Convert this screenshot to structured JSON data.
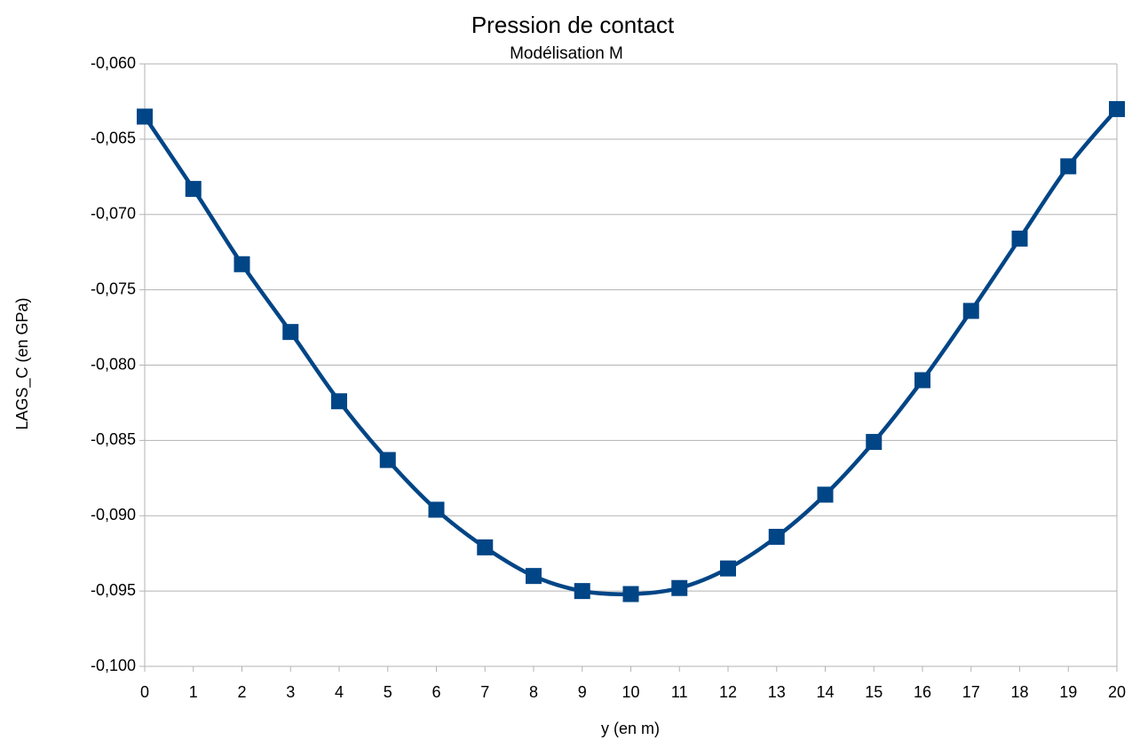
{
  "chart_data": {
    "type": "line",
    "title": "Pression de contact",
    "subtitle": "Modélisation  M",
    "x_label": "y  (en m)",
    "y_label": "LAGS_C  (en GPa)",
    "x": [
      0,
      1,
      2,
      3,
      4,
      5,
      6,
      7,
      8,
      9,
      10,
      11,
      12,
      13,
      14,
      15,
      16,
      17,
      18,
      19,
      20
    ],
    "series": [
      {
        "name": "LAGS_C",
        "color": "#004586",
        "values": [
          -0.0635,
          -0.0683,
          -0.0733,
          -0.0778,
          -0.0824,
          -0.0863,
          -0.0896,
          -0.0921,
          -0.094,
          -0.095,
          -0.0952,
          -0.0948,
          -0.0935,
          -0.0914,
          -0.0886,
          -0.0851,
          -0.081,
          -0.0764,
          -0.0716,
          -0.0668,
          -0.063
        ]
      }
    ],
    "xlim": [
      0,
      20
    ],
    "xticks": [
      0,
      1,
      2,
      3,
      4,
      5,
      6,
      7,
      8,
      9,
      10,
      11,
      12,
      13,
      14,
      15,
      16,
      17,
      18,
      19,
      20
    ],
    "ylim": [
      -0.1,
      -0.06
    ],
    "yticks": [
      {
        "value": -0.1,
        "label": "-0,100"
      },
      {
        "value": -0.095,
        "label": "-0,095"
      },
      {
        "value": -0.09,
        "label": "-0,090"
      },
      {
        "value": -0.085,
        "label": "-0,085"
      },
      {
        "value": -0.08,
        "label": "-0,080"
      },
      {
        "value": -0.075,
        "label": "-0,075"
      },
      {
        "value": -0.07,
        "label": "-0,070"
      },
      {
        "value": -0.065,
        "label": "-0,065"
      },
      {
        "value": -0.06,
        "label": "-0,060"
      }
    ],
    "grid": true,
    "smooth": true,
    "marker": "square"
  }
}
